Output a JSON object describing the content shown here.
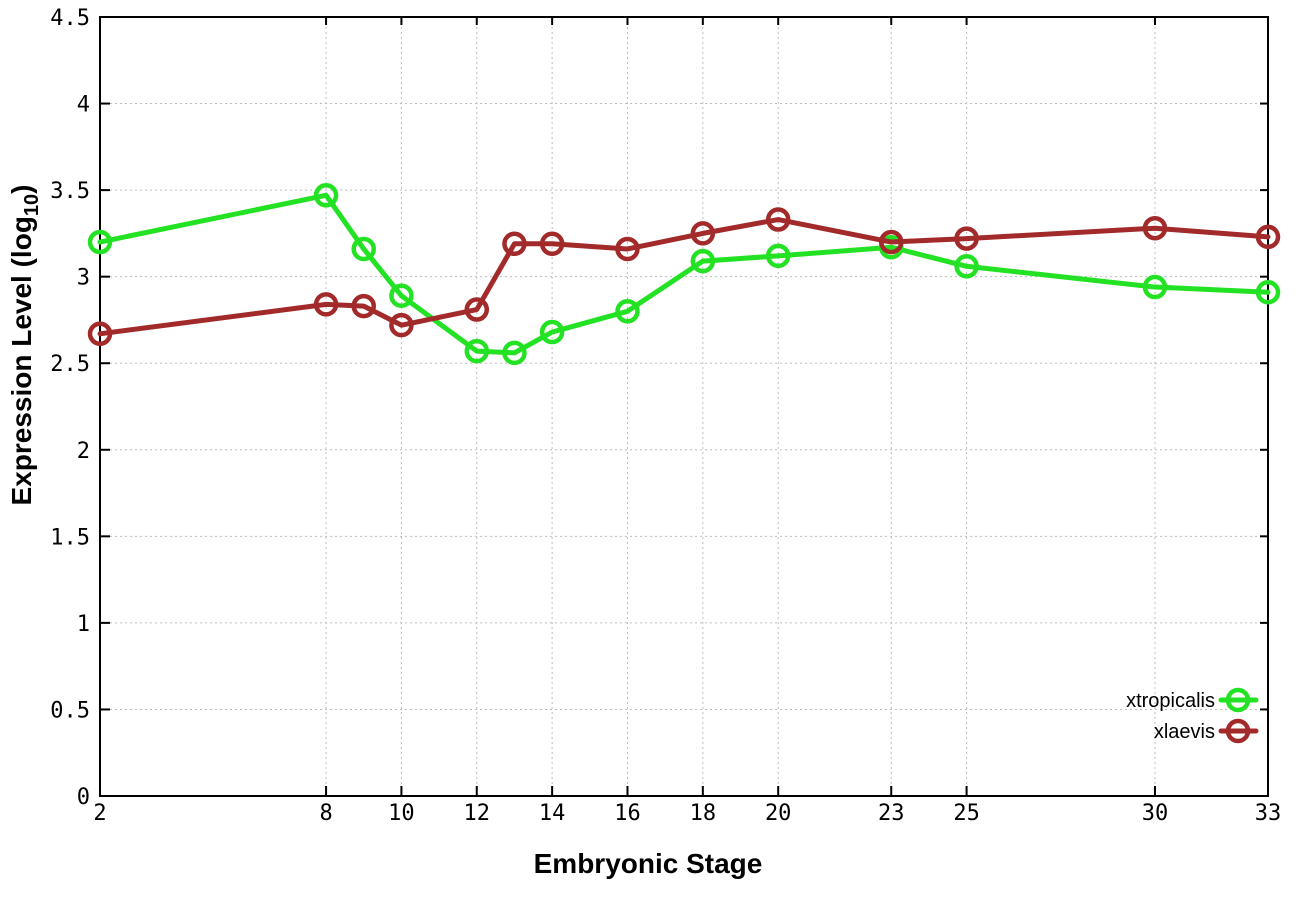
{
  "chart_data": {
    "type": "line",
    "title": "",
    "xlabel": "Embryonic Stage",
    "ylabel": "Expression Level (log10)",
    "ylabel_parts": {
      "main": "Expression Level (log",
      "sub": "10",
      "close": ")"
    },
    "x": [
      2,
      8,
      9,
      10,
      12,
      13,
      14,
      16,
      18,
      20,
      23,
      25,
      30,
      33
    ],
    "x_ticks": [
      2,
      8,
      10,
      12,
      14,
      16,
      18,
      20,
      23,
      25,
      30,
      33
    ],
    "y_ticks": [
      0,
      0.5,
      1,
      1.5,
      2,
      2.5,
      3,
      3.5,
      4,
      4.5
    ],
    "xlim": [
      2,
      33
    ],
    "ylim": [
      0,
      4.5
    ],
    "grid": true,
    "legend_position": "inside-bottom-right",
    "series": [
      {
        "name": "xtropicalis",
        "color": "#23e123",
        "values": [
          3.2,
          3.47,
          3.16,
          2.89,
          2.57,
          2.56,
          2.68,
          2.8,
          3.09,
          3.12,
          3.17,
          3.06,
          2.94,
          2.91
        ]
      },
      {
        "name": "xlaevis",
        "color": "#a32a2a",
        "values": [
          2.67,
          2.84,
          2.83,
          2.72,
          2.81,
          3.19,
          3.19,
          3.16,
          3.25,
          3.33,
          3.2,
          3.22,
          3.28,
          3.23
        ]
      }
    ]
  },
  "style": {
    "border_color": "#000000",
    "grid_color": "#bdbdbd",
    "background": "#ffffff"
  }
}
